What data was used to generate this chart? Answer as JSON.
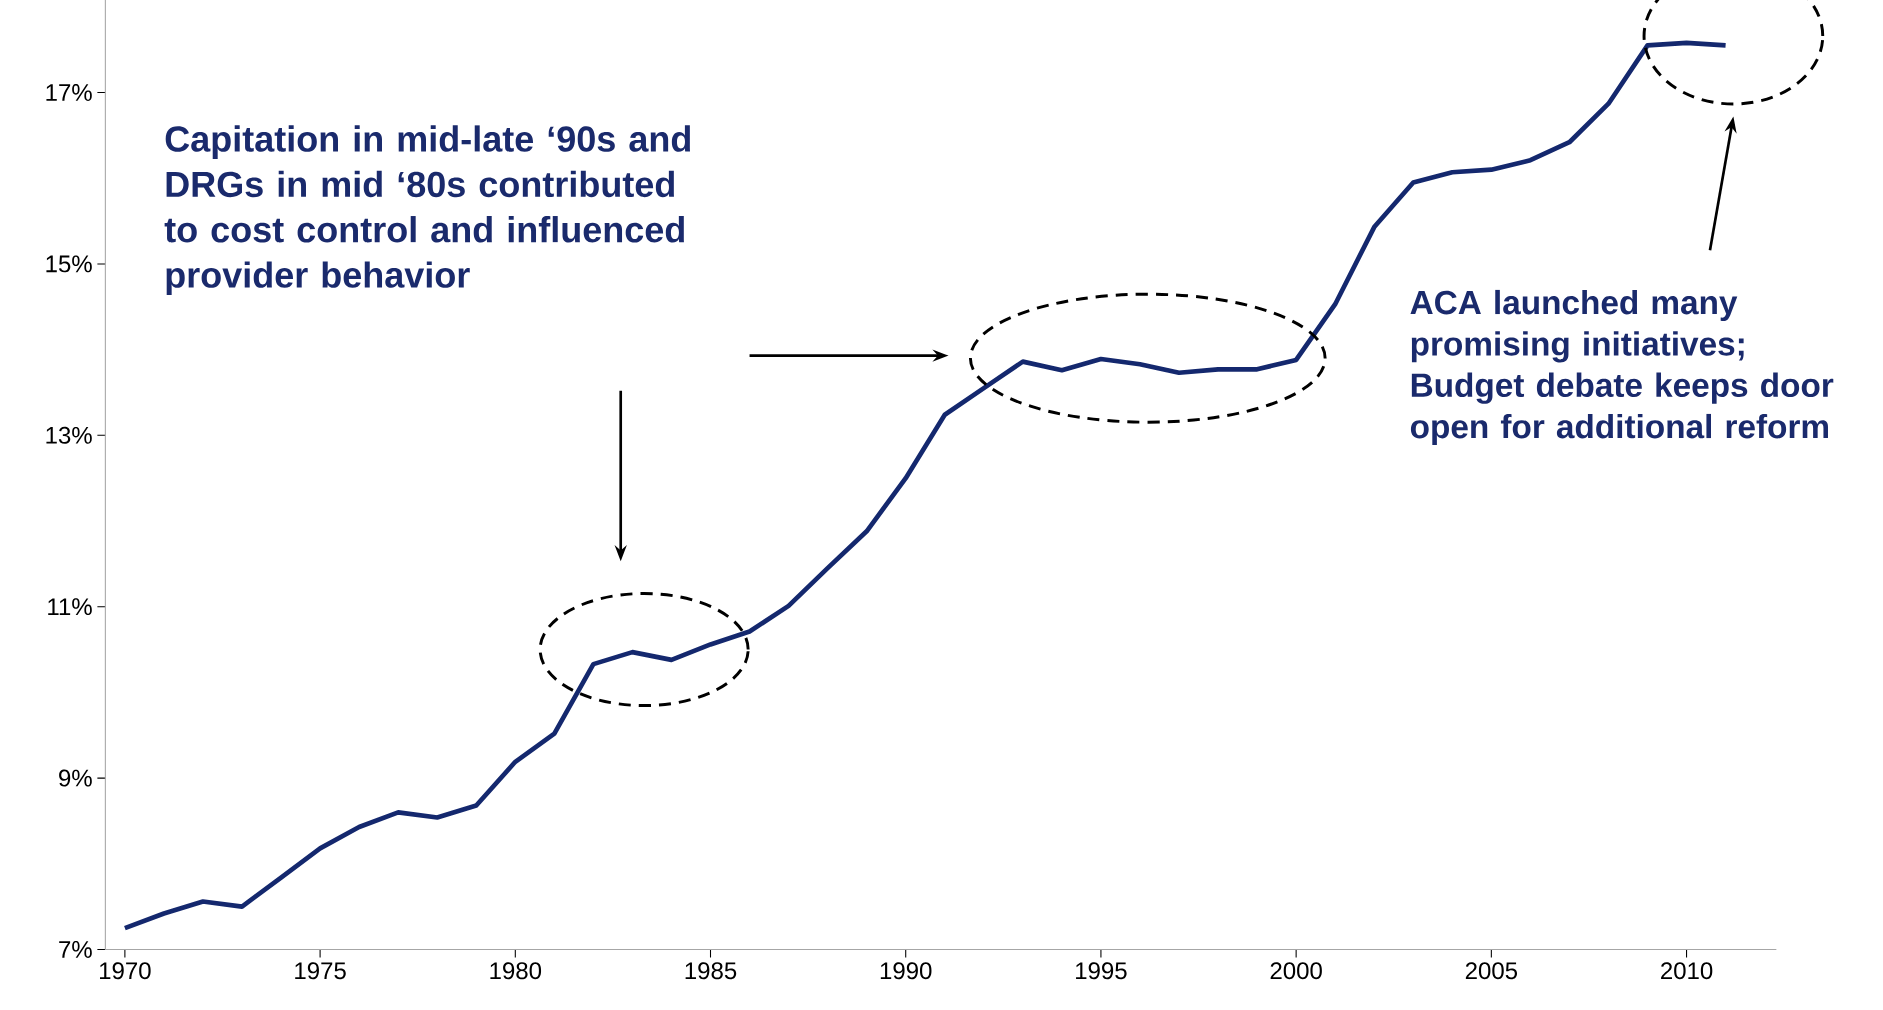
{
  "chart_data": {
    "type": "line",
    "x": [
      1970,
      1971,
      1972,
      1973,
      1974,
      1975,
      1976,
      1977,
      1978,
      1979,
      1980,
      1981,
      1982,
      1983,
      1984,
      1985,
      1986,
      1987,
      1988,
      1989,
      1990,
      1991,
      1992,
      1993,
      1994,
      1995,
      1996,
      1997,
      1998,
      1999,
      2000,
      2001,
      2002,
      2003,
      2004,
      2005,
      2006,
      2007,
      2008,
      2009,
      2010,
      2011
    ],
    "series": [
      {
        "color": "#14286e",
        "values": [
          7.25,
          7.42,
          7.56,
          7.5,
          7.84,
          8.18,
          8.43,
          8.6,
          8.54,
          8.68,
          9.19,
          9.52,
          10.33,
          10.47,
          10.38,
          10.56,
          10.71,
          11.01,
          11.45,
          11.88,
          12.5,
          13.24,
          13.55,
          13.86,
          13.76,
          13.89,
          13.83,
          13.73,
          13.77,
          13.77,
          13.88,
          14.53,
          15.43,
          15.95,
          16.07,
          16.1,
          16.21,
          16.42,
          16.87,
          17.55,
          17.58,
          17.55
        ]
      }
    ],
    "xlim": [
      1969.5,
      2012.3
    ],
    "xticks": [
      1970,
      1975,
      1980,
      1985,
      1990,
      1995,
      2000,
      2005,
      2010
    ],
    "ylim": [
      7,
      18.08
    ],
    "yticks": [
      {
        "value": 7,
        "label": "7%"
      },
      {
        "value": 9,
        "label": "9%"
      },
      {
        "value": 11,
        "label": "11%"
      },
      {
        "value": 13,
        "label": "13%"
      },
      {
        "value": 15,
        "label": "15%"
      },
      {
        "value": 17,
        "label": "17%"
      }
    ],
    "grid": false,
    "marker": "none",
    "line_style": "solid",
    "annotations": [
      "Capitation in mid-late ‘90s and DRGs in mid ‘80s contributed to cost control and influenced provider behavior",
      "ACA launched many promising  initiatives; Budget debate keeps door open for additional reform"
    ]
  }
}
